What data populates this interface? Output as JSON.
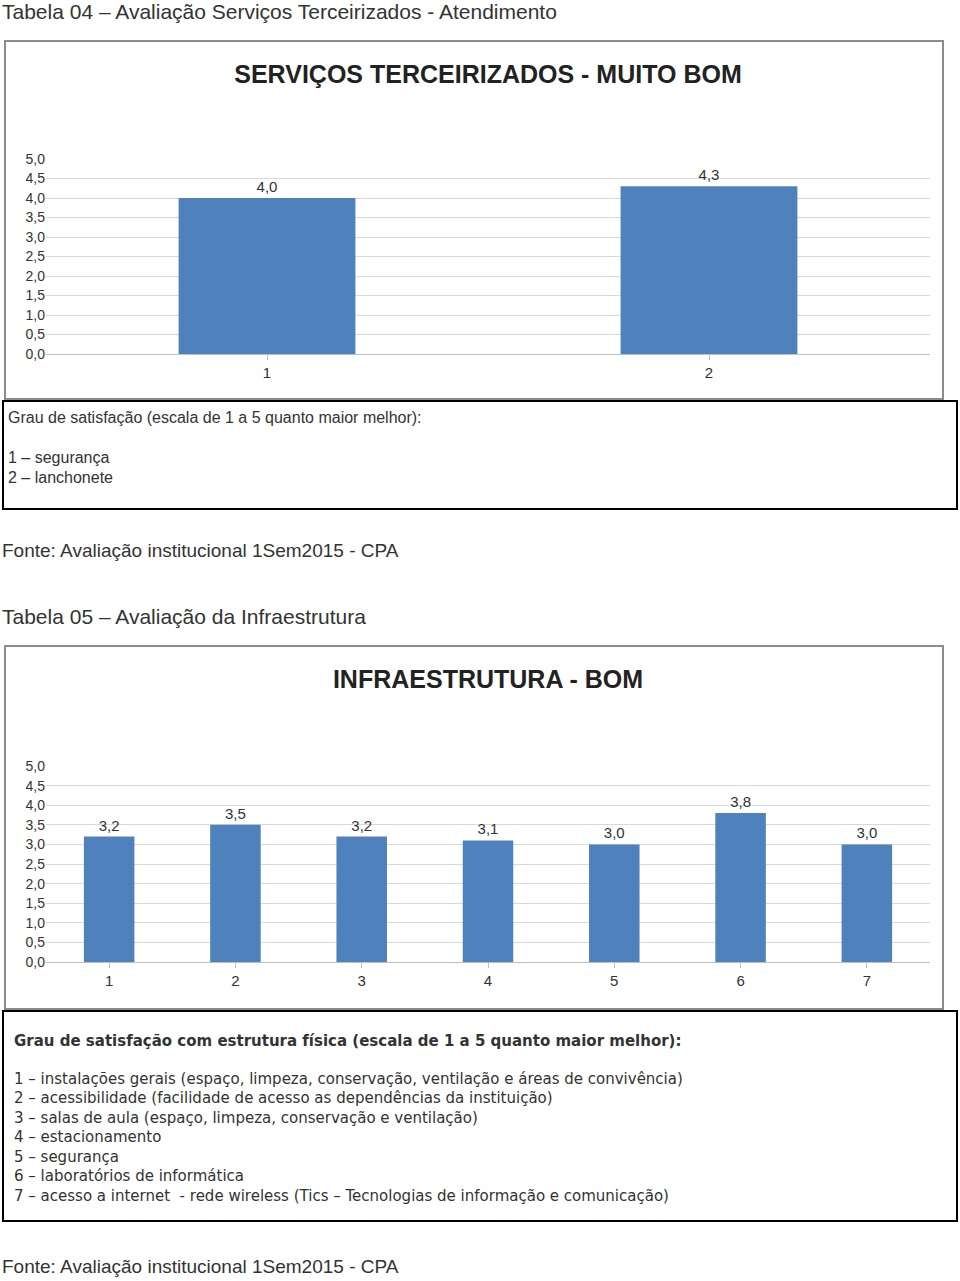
{
  "chart_data": [
    {
      "heading": "Tabela 04 – Avaliação Serviços Terceirizados - Atendimento",
      "type": "bar",
      "title": "SERVIÇOS TERCEIRIZADOS - MUITO BOM",
      "categories": [
        "1",
        "2"
      ],
      "values": [
        4.0,
        4.3
      ],
      "value_labels": [
        "4,0",
        "4,3"
      ],
      "data_labels": true,
      "color": "#4f81bd",
      "ylim": [
        0,
        5
      ],
      "yticks": [
        {
          "value": 0,
          "label": "0,0"
        },
        {
          "value": 0.5,
          "label": "0,5"
        },
        {
          "value": 1,
          "label": "1,0"
        },
        {
          "value": 1.5,
          "label": "1,5"
        },
        {
          "value": 2,
          "label": "2,0"
        },
        {
          "value": 2.5,
          "label": "2,5"
        },
        {
          "value": 3,
          "label": "3,0"
        },
        {
          "value": 3.5,
          "label": "3,5"
        },
        {
          "value": 4,
          "label": "4,0"
        },
        {
          "value": 4.5,
          "label": "4,5"
        },
        {
          "value": 5,
          "label": "5,0"
        }
      ],
      "grid": true,
      "caption_title": "Grau de satisfação (escala de 1 a 5 quanto maior melhor):",
      "caption_items": [
        "1 – segurança",
        "2 – lanchonete"
      ],
      "source": "Fonte: Avaliação institucional 1Sem2015 - CPA"
    },
    {
      "heading": "Tabela 05 – Avaliação da Infraestrutura",
      "type": "bar",
      "title": "INFRAESTRUTURA - BOM",
      "categories": [
        "1",
        "2",
        "3",
        "4",
        "5",
        "6",
        "7"
      ],
      "values": [
        3.2,
        3.5,
        3.2,
        3.1,
        3.0,
        3.8,
        3.0
      ],
      "value_labels": [
        "3,2",
        "3,5",
        "3,2",
        "3,1",
        "3,0",
        "3,8",
        "3,0"
      ],
      "data_labels": true,
      "color": "#4f81bd",
      "ylim": [
        0,
        5
      ],
      "yticks": [
        {
          "value": 0,
          "label": "0,0"
        },
        {
          "value": 0.5,
          "label": "0,5"
        },
        {
          "value": 1,
          "label": "1,0"
        },
        {
          "value": 1.5,
          "label": "1,5"
        },
        {
          "value": 2,
          "label": "2,0"
        },
        {
          "value": 2.5,
          "label": "2,5"
        },
        {
          "value": 3,
          "label": "3,0"
        },
        {
          "value": 3.5,
          "label": "3,5"
        },
        {
          "value": 4,
          "label": "4,0"
        },
        {
          "value": 4.5,
          "label": "4,5"
        },
        {
          "value": 5,
          "label": "5,0"
        }
      ],
      "grid": true,
      "caption_title": "Grau de satisfação com estrutura física (escala de 1 a 5 quanto maior melhor):",
      "caption_items": [
        "1 – instalações gerais (espaço, limpeza, conservação, ventilação e áreas de convivência)",
        "2 – acessibilidade (facilidade de acesso as dependências da instituição)",
        "3 – salas de aula (espaço, limpeza, conservação e ventilação)",
        "4 – estacionamento",
        "5 – segurança",
        "6 – laboratórios de informática",
        "7 – acesso a internet  - rede wireless (Tics – Tecnologias de informação e comunicação)"
      ],
      "source": "Fonte: Avaliação institucional 1Sem2015 - CPA"
    }
  ]
}
